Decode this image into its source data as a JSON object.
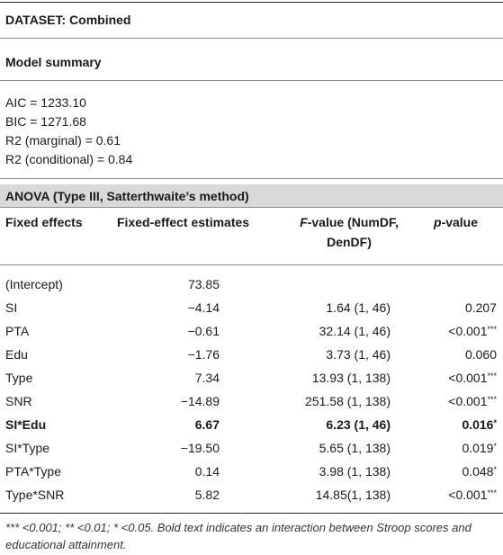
{
  "dataset_label": "DATASET: Combined",
  "model_summary": {
    "heading": "Model summary",
    "lines": [
      "AIC = 1233.10",
      "BIC = 1271.68",
      "R2 (marginal) = 0.61",
      "R2 (conditional) = 0.84"
    ]
  },
  "anova": {
    "title": "ANOVA (Type III, Satterthwaite’s method)",
    "headers": {
      "fixed_effects": "Fixed effects",
      "estimates": "Fixed-effect estimates",
      "f_italic": "F",
      "f_rest_line1": "-value (NumDF,",
      "f_line2": "DenDF)",
      "p_italic": "p",
      "p_rest": "-value"
    },
    "rows": [
      {
        "name": "(Intercept)",
        "estimate": "73.85",
        "f": "",
        "p": "",
        "p_sup": "",
        "bold": false
      },
      {
        "name": "SI",
        "estimate": "−4.14",
        "f": "1.64 (1, 46)",
        "p": "0.207",
        "p_sup": "",
        "bold": false
      },
      {
        "name": "PTA",
        "estimate": "−0.61",
        "f": "32.14 (1, 46)",
        "p": "<0.001",
        "p_sup": "***",
        "bold": false
      },
      {
        "name": "Edu",
        "estimate": "−1.76",
        "f": "3.73 (1, 46)",
        "p": "0.060",
        "p_sup": "",
        "bold": false
      },
      {
        "name": "Type",
        "estimate": "7.34",
        "f": "13.93 (1, 138)",
        "p": "<0.001",
        "p_sup": "***",
        "bold": false
      },
      {
        "name": "SNR",
        "estimate": "−14.89",
        "f": "251.58 (1, 138)",
        "p": "<0.001",
        "p_sup": "***",
        "bold": false
      },
      {
        "name": "SI*Edu",
        "estimate": "6.67",
        "f": "6.23 (1, 46)",
        "p": "0.016",
        "p_sup": "*",
        "bold": true
      },
      {
        "name": "SI*Type",
        "estimate": "−19.50",
        "f": "5.65 (1, 138)",
        "p": "0.019",
        "p_sup": "*",
        "bold": false
      },
      {
        "name": "PTA*Type",
        "estimate": "0.14",
        "f": "3.98 (1, 138)",
        "p": "0.048",
        "p_sup": "*",
        "bold": false
      },
      {
        "name": "Type*SNR",
        "estimate": "5.82",
        "f": "14.85(1, 138)",
        "p": "<0.001",
        "p_sup": "***",
        "bold": false
      }
    ]
  },
  "footnote": "*** <0.001; ** <0.01; * <0.05. Bold text indicates an interaction between Stroop scores and educational attainment."
}
